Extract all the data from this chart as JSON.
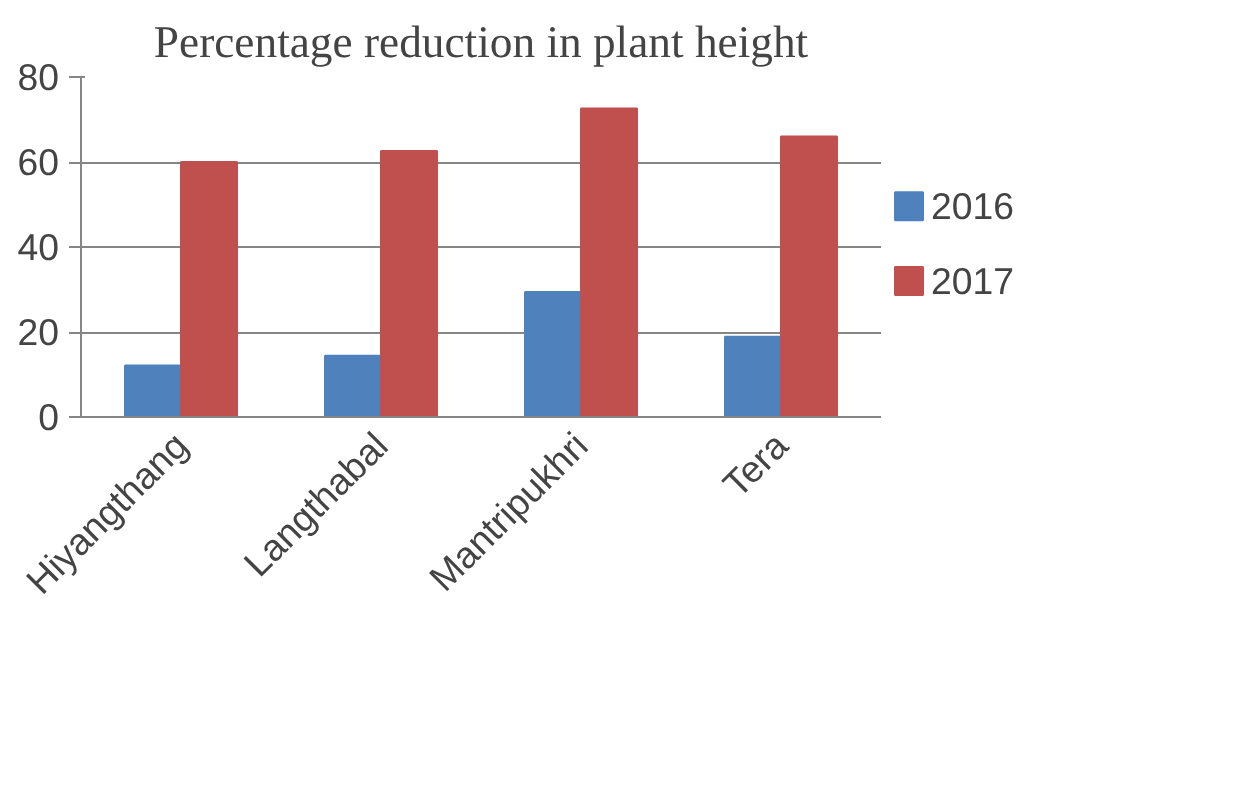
{
  "chart_data": {
    "type": "bar",
    "title": "Percentage reduction in plant height",
    "categories": [
      "Hiyangthang",
      "Langthabal",
      "Mantripukhri",
      "Tera"
    ],
    "series": [
      {
        "name": "2016",
        "color": "#4f81bd",
        "values": [
          12.1,
          14.4,
          29.4,
          18.9
        ]
      },
      {
        "name": "2017",
        "color": "#c0504d",
        "values": [
          60,
          62.6,
          72.6,
          66
        ]
      }
    ],
    "ylim": [
      0,
      80
    ],
    "yticks": [
      0,
      20,
      40,
      60,
      80
    ],
    "grid": "y",
    "legend": "right"
  }
}
